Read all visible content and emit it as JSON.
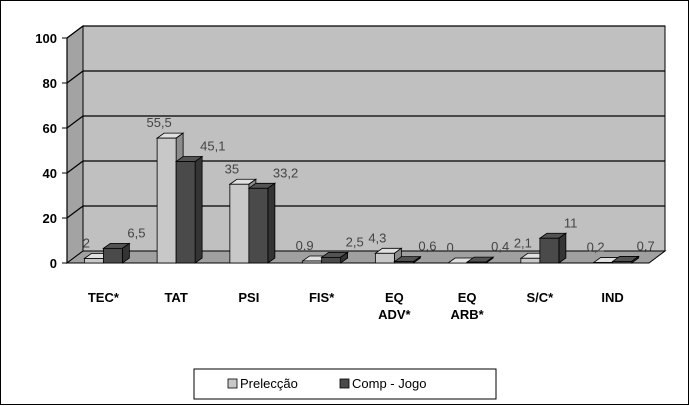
{
  "chart_data": {
    "type": "bar",
    "categories": [
      [
        "TEC*"
      ],
      [
        "TAT"
      ],
      [
        "PSI"
      ],
      [
        "FIS*"
      ],
      [
        "EQ",
        "ADV*"
      ],
      [
        "EQ",
        "ARB*"
      ],
      [
        "S/C*"
      ],
      [
        "IND"
      ]
    ],
    "series": [
      {
        "name": "Prelecção",
        "values": [
          2,
          55.5,
          35,
          0.9,
          4.3,
          0,
          2.1,
          0.2
        ],
        "labels": [
          "2",
          "55,5",
          "35",
          "0,9",
          "4,3",
          "0",
          "2,1",
          "0,2"
        ],
        "color": "#c8c8c8"
      },
      {
        "name": "Comp - Jogo",
        "values": [
          6.5,
          45.1,
          33.2,
          2.5,
          0.6,
          0.4,
          11,
          0.7
        ],
        "labels": [
          "6,5",
          "45,1",
          "33,2",
          "2,5",
          "0,6",
          "0,4",
          "11",
          "0,7"
        ],
        "color": "#4a4a4a"
      }
    ],
    "yticks": [
      "0",
      "20",
      "40",
      "60",
      "80",
      "100"
    ],
    "ylim": [
      0,
      100
    ],
    "grid": true,
    "legend_position": "bottom",
    "colors": {
      "wall": "#c0c0c0",
      "gridline": "#000000",
      "floor": "#a0a0a0"
    }
  }
}
